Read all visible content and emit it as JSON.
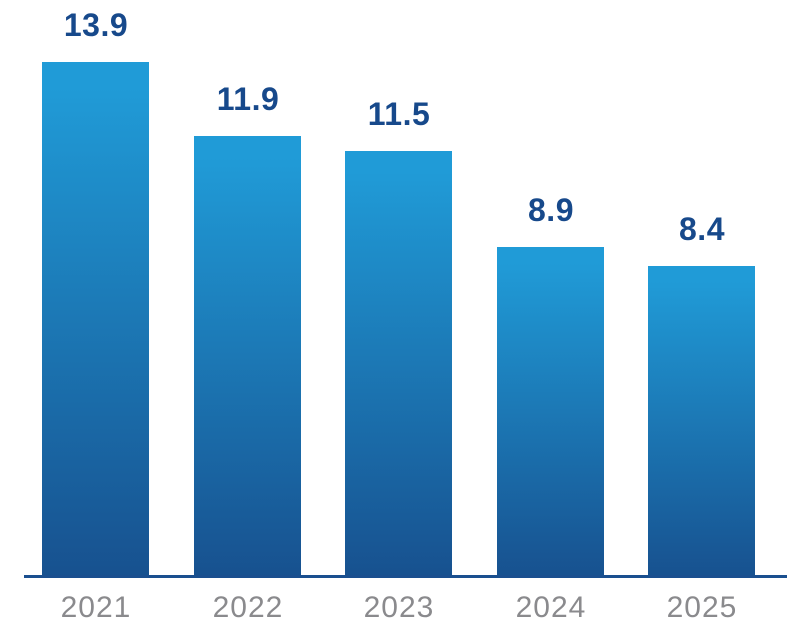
{
  "chart_data": {
    "type": "bar",
    "title": "",
    "xlabel": "",
    "ylabel": "",
    "categories": [
      "2021",
      "2022",
      "2023",
      "2024",
      "2025"
    ],
    "values": [
      13.9,
      11.9,
      11.5,
      8.9,
      8.4
    ],
    "value_labels": [
      "13.9",
      "11.9",
      "11.5",
      "8.9",
      "8.4"
    ],
    "ylim": [
      0,
      15.6
    ],
    "grid": false,
    "legend": false,
    "colors": {
      "bar_gradient_top": "#209BD7",
      "bar_gradient_bottom": "#17518F",
      "axis_line": "#1A4F8F",
      "value_label": "#17498B",
      "category_label": "#8A8A8D",
      "background": "#FFFFFF"
    }
  }
}
